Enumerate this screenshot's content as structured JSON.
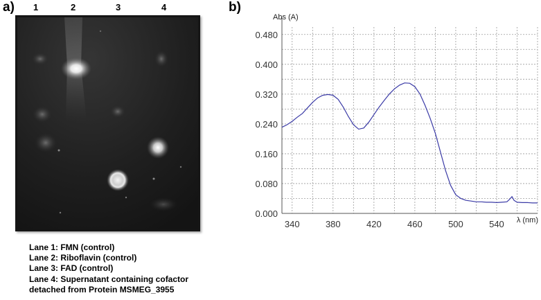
{
  "panel_a": {
    "label": "a)",
    "lanes": [
      "1",
      "2",
      "3",
      "4"
    ],
    "legend": [
      "Lane 1: FMN (control)",
      "Lane 2: Riboflavin (control)",
      "Lane 3: FAD (control)",
      "Lane 4: Supernatant containing cofactor",
      "detached from Protein MSMEG_3955"
    ]
  },
  "panel_b": {
    "label": "b)"
  },
  "chart_data": {
    "type": "line",
    "title": "",
    "ylabel": "Abs (A)",
    "xlabel": "λ (nm)",
    "xlim": [
      330,
      580
    ],
    "ylim": [
      0.0,
      0.5
    ],
    "x_ticks": [
      "340",
      "380",
      "420",
      "460",
      "500",
      "540"
    ],
    "y_ticks": [
      "0.000",
      "0.080",
      "0.160",
      "0.240",
      "0.320",
      "0.400",
      "0.480"
    ],
    "grid": true,
    "line_color": "#3a3aa6",
    "series": [
      {
        "x": [
          330,
          335,
          340,
          345,
          350,
          355,
          360,
          365,
          370,
          375,
          380,
          385,
          390,
          395,
          400,
          405,
          410,
          415,
          420,
          425,
          430,
          435,
          440,
          445,
          450,
          455,
          460,
          465,
          470,
          475,
          480,
          485,
          490,
          495,
          500,
          505,
          510,
          515,
          520,
          525,
          530,
          535,
          540,
          545,
          550,
          552,
          555,
          557,
          560,
          565,
          570,
          575,
          580
        ],
        "values": [
          0.231,
          0.238,
          0.247,
          0.258,
          0.268,
          0.283,
          0.298,
          0.31,
          0.317,
          0.319,
          0.317,
          0.306,
          0.285,
          0.26,
          0.238,
          0.226,
          0.229,
          0.245,
          0.265,
          0.285,
          0.303,
          0.32,
          0.334,
          0.344,
          0.35,
          0.349,
          0.34,
          0.32,
          0.29,
          0.255,
          0.215,
          0.165,
          0.115,
          0.075,
          0.05,
          0.04,
          0.035,
          0.033,
          0.031,
          0.031,
          0.03,
          0.03,
          0.029,
          0.03,
          0.031,
          0.036,
          0.045,
          0.035,
          0.03,
          0.029,
          0.029,
          0.028,
          0.028
        ]
      }
    ]
  }
}
